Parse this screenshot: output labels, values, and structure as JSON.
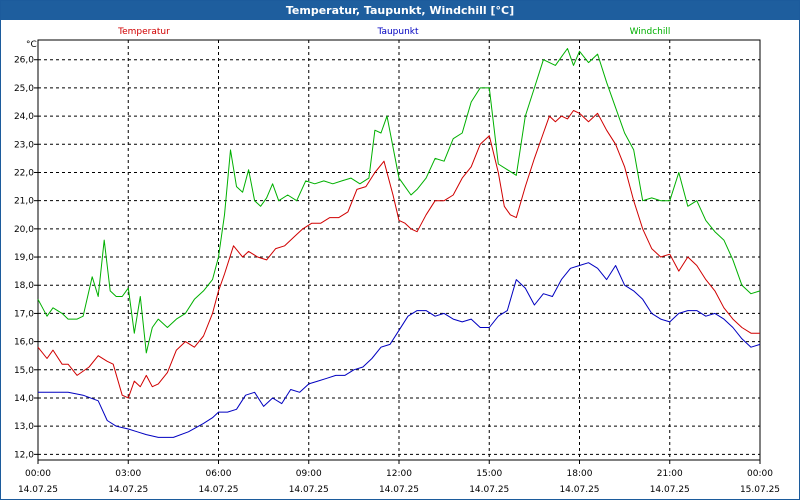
{
  "window": {
    "title": "Temperatur, Taupunkt, Windchill [°C]"
  },
  "chart_data": {
    "type": "line",
    "title": "Temperatur, Taupunkt, Windchill [°C]",
    "ylabel": "°C",
    "ylim": [
      11.8,
      26.7
    ],
    "yticks": [
      12.0,
      13.0,
      14.0,
      15.0,
      16.0,
      17.0,
      18.0,
      19.0,
      20.0,
      21.0,
      22.0,
      23.0,
      24.0,
      25.0,
      26.0
    ],
    "ytick_labels": [
      "12,0",
      "13,0",
      "14,0",
      "15,0",
      "16,0",
      "17,0",
      "18,0",
      "19,0",
      "20,0",
      "21,0",
      "22,0",
      "23,0",
      "24,0",
      "25,0",
      "26,0"
    ],
    "xlim": [
      0,
      24
    ],
    "xticks": [
      0,
      3,
      6,
      9,
      12,
      15,
      18,
      21,
      24
    ],
    "xtick_time": [
      "00:00",
      "03:00",
      "06:00",
      "09:00",
      "12:00",
      "15:00",
      "18:00",
      "21:00",
      "00:00"
    ],
    "xtick_date": [
      "14.07.25",
      "14.07.25",
      "14.07.25",
      "14.07.25",
      "14.07.25",
      "14.07.25",
      "14.07.25",
      "14.07.25",
      "15.07.25"
    ],
    "grid": true,
    "legend_position": "top",
    "series": [
      {
        "name": "Temperatur",
        "color": "#d00000",
        "x": [
          0,
          0.3,
          0.5,
          0.8,
          1.0,
          1.3,
          1.7,
          2.0,
          2.3,
          2.5,
          2.8,
          3.0,
          3.2,
          3.4,
          3.6,
          3.8,
          4.0,
          4.3,
          4.6,
          4.9,
          5.2,
          5.5,
          5.8,
          6.0,
          6.2,
          6.5,
          6.8,
          7.0,
          7.3,
          7.6,
          7.9,
          8.2,
          8.5,
          8.8,
          9.1,
          9.4,
          9.7,
          10.0,
          10.3,
          10.6,
          10.9,
          11.2,
          11.5,
          11.8,
          12.0,
          12.2,
          12.4,
          12.6,
          12.9,
          13.2,
          13.5,
          13.8,
          14.1,
          14.4,
          14.7,
          15.0,
          15.3,
          15.5,
          15.7,
          15.9,
          16.2,
          16.5,
          16.8,
          17.0,
          17.2,
          17.4,
          17.6,
          17.8,
          18.0,
          18.3,
          18.6,
          18.9,
          19.2,
          19.5,
          19.8,
          20.1,
          20.4,
          20.7,
          21.0,
          21.3,
          21.6,
          21.9,
          22.2,
          22.5,
          22.8,
          23.1,
          23.4,
          23.7,
          24.0
        ],
        "values": [
          15.8,
          15.4,
          15.7,
          15.2,
          15.2,
          14.8,
          15.1,
          15.5,
          15.3,
          15.2,
          14.1,
          14.0,
          14.6,
          14.4,
          14.8,
          14.4,
          14.5,
          14.9,
          15.7,
          16.0,
          15.8,
          16.2,
          17.0,
          17.8,
          18.4,
          19.4,
          19.0,
          19.2,
          19.0,
          18.9,
          19.3,
          19.4,
          19.7,
          20.0,
          20.2,
          20.2,
          20.4,
          20.4,
          20.6,
          21.4,
          21.5,
          22.0,
          22.4,
          21.2,
          20.3,
          20.2,
          20.0,
          19.9,
          20.5,
          21.0,
          21.0,
          21.2,
          21.8,
          22.2,
          23.0,
          23.3,
          22.0,
          20.8,
          20.5,
          20.4,
          21.5,
          22.5,
          23.4,
          24.0,
          23.8,
          24.0,
          23.9,
          24.2,
          24.1,
          23.8,
          24.1,
          23.5,
          23.0,
          22.2,
          21.0,
          20.0,
          19.3,
          19.0,
          19.1,
          18.5,
          19.0,
          18.7,
          18.2,
          17.8,
          17.2,
          16.8,
          16.5,
          16.3,
          16.3
        ]
      },
      {
        "name": "Taupunkt",
        "color": "#0000c0",
        "x": [
          0,
          0.5,
          1.0,
          1.5,
          2.0,
          2.3,
          2.6,
          3.0,
          3.3,
          3.6,
          4.0,
          4.5,
          5.0,
          5.5,
          5.8,
          6.0,
          6.3,
          6.6,
          6.9,
          7.2,
          7.5,
          7.8,
          8.1,
          8.4,
          8.7,
          9.0,
          9.3,
          9.6,
          9.9,
          10.2,
          10.5,
          10.8,
          11.1,
          11.4,
          11.7,
          12.0,
          12.3,
          12.6,
          12.9,
          13.2,
          13.5,
          13.8,
          14.1,
          14.4,
          14.7,
          15.0,
          15.3,
          15.6,
          15.9,
          16.2,
          16.5,
          16.8,
          17.1,
          17.4,
          17.7,
          18.0,
          18.3,
          18.6,
          18.9,
          19.2,
          19.5,
          19.8,
          20.1,
          20.4,
          20.7,
          21.0,
          21.3,
          21.6,
          21.9,
          22.2,
          22.5,
          22.8,
          23.1,
          23.4,
          23.7,
          24.0
        ],
        "values": [
          14.2,
          14.2,
          14.2,
          14.1,
          13.9,
          13.2,
          13.0,
          12.9,
          12.8,
          12.7,
          12.6,
          12.6,
          12.8,
          13.1,
          13.3,
          13.5,
          13.5,
          13.6,
          14.1,
          14.2,
          13.7,
          14.0,
          13.8,
          14.3,
          14.2,
          14.5,
          14.6,
          14.7,
          14.8,
          14.8,
          15.0,
          15.1,
          15.4,
          15.8,
          15.9,
          16.4,
          16.9,
          17.1,
          17.1,
          16.9,
          17.0,
          16.8,
          16.7,
          16.8,
          16.5,
          16.5,
          16.9,
          17.1,
          18.2,
          17.9,
          17.3,
          17.7,
          17.6,
          18.2,
          18.6,
          18.7,
          18.8,
          18.6,
          18.2,
          18.7,
          18.0,
          17.8,
          17.5,
          17.0,
          16.8,
          16.7,
          17.0,
          17.1,
          17.1,
          16.9,
          17.0,
          16.8,
          16.5,
          16.1,
          15.8,
          15.9
        ]
      },
      {
        "name": "Windchill",
        "color": "#00b000",
        "x": [
          0,
          0.3,
          0.5,
          0.8,
          1.0,
          1.3,
          1.5,
          1.8,
          2.0,
          2.2,
          2.4,
          2.6,
          2.8,
          3.0,
          3.2,
          3.4,
          3.6,
          3.8,
          4.0,
          4.3,
          4.6,
          4.9,
          5.2,
          5.5,
          5.8,
          6.0,
          6.2,
          6.4,
          6.6,
          6.8,
          7.0,
          7.2,
          7.4,
          7.6,
          7.8,
          8.0,
          8.3,
          8.6,
          8.9,
          9.2,
          9.5,
          9.8,
          10.1,
          10.4,
          10.7,
          11.0,
          11.2,
          11.4,
          11.6,
          11.8,
          12.0,
          12.2,
          12.4,
          12.6,
          12.9,
          13.2,
          13.5,
          13.8,
          14.1,
          14.4,
          14.7,
          15.0,
          15.3,
          15.6,
          15.9,
          16.2,
          16.5,
          16.8,
          17.0,
          17.2,
          17.4,
          17.6,
          17.8,
          18.0,
          18.3,
          18.6,
          18.9,
          19.2,
          19.5,
          19.8,
          20.1,
          20.4,
          20.7,
          21.0,
          21.3,
          21.6,
          21.9,
          22.2,
          22.5,
          22.8,
          23.1,
          23.4,
          23.7,
          24.0
        ],
        "values": [
          17.5,
          16.9,
          17.2,
          17.0,
          16.8,
          16.8,
          16.9,
          18.3,
          17.6,
          19.6,
          17.8,
          17.6,
          17.6,
          17.9,
          16.3,
          17.6,
          15.6,
          16.5,
          16.8,
          16.5,
          16.8,
          17.0,
          17.5,
          17.8,
          18.2,
          19.0,
          20.5,
          22.8,
          21.5,
          21.3,
          22.1,
          21.0,
          20.8,
          21.1,
          21.6,
          21.0,
          21.2,
          21.0,
          21.7,
          21.6,
          21.7,
          21.6,
          21.7,
          21.8,
          21.6,
          21.8,
          23.5,
          23.4,
          24.0,
          22.9,
          21.8,
          21.5,
          21.2,
          21.4,
          21.8,
          22.5,
          22.4,
          23.2,
          23.4,
          24.5,
          25.0,
          25.0,
          22.3,
          22.1,
          21.9,
          24.0,
          25.0,
          26.0,
          25.9,
          25.8,
          26.1,
          26.4,
          25.8,
          26.3,
          25.9,
          26.2,
          25.2,
          24.3,
          23.4,
          22.8,
          21.0,
          21.1,
          21.0,
          21.0,
          22.0,
          20.8,
          21.0,
          20.3,
          19.9,
          19.6,
          18.9,
          18.0,
          17.7,
          17.8
        ]
      }
    ]
  }
}
